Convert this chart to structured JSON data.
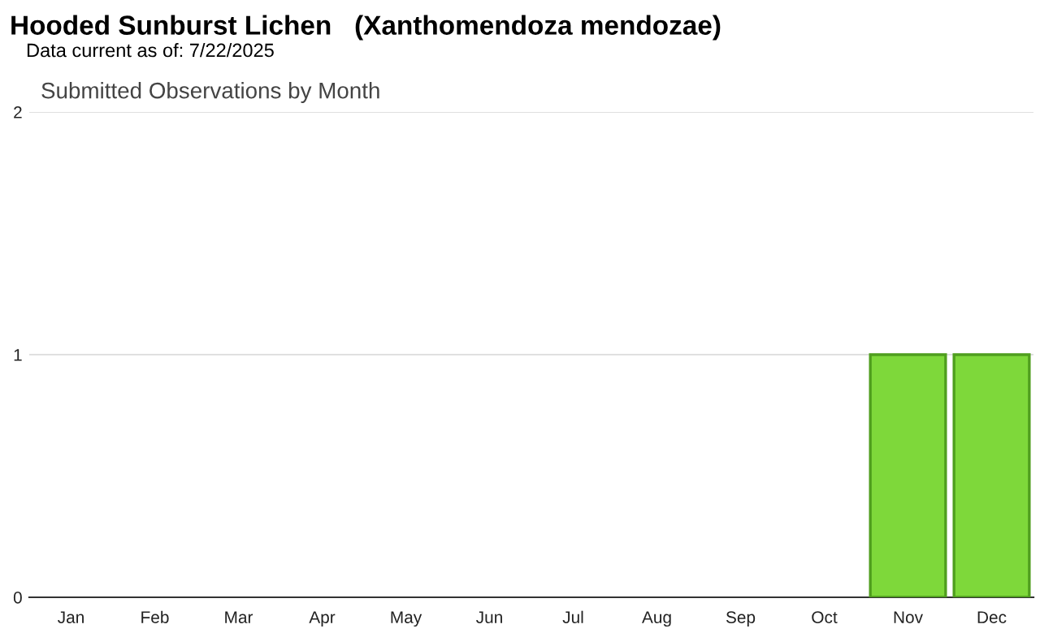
{
  "chart_data": {
    "type": "bar",
    "title": "Hooded Sunburst Lichen   (Xanthomendoza mendozae)",
    "subtitle": "Data current as of: 7/22/2025",
    "annotations": [
      "Submitted Observations by Month"
    ],
    "categories": [
      "Jan",
      "Feb",
      "Mar",
      "Apr",
      "May",
      "Jun",
      "Jul",
      "Aug",
      "Sep",
      "Oct",
      "Nov",
      "Dec"
    ],
    "values": [
      0,
      0,
      0,
      0,
      0,
      0,
      0,
      0,
      0,
      0,
      1,
      1
    ],
    "color": "#7ed83a",
    "ylim": [
      0,
      2
    ],
    "yticks": [
      0,
      1,
      2
    ],
    "grid": "y"
  }
}
